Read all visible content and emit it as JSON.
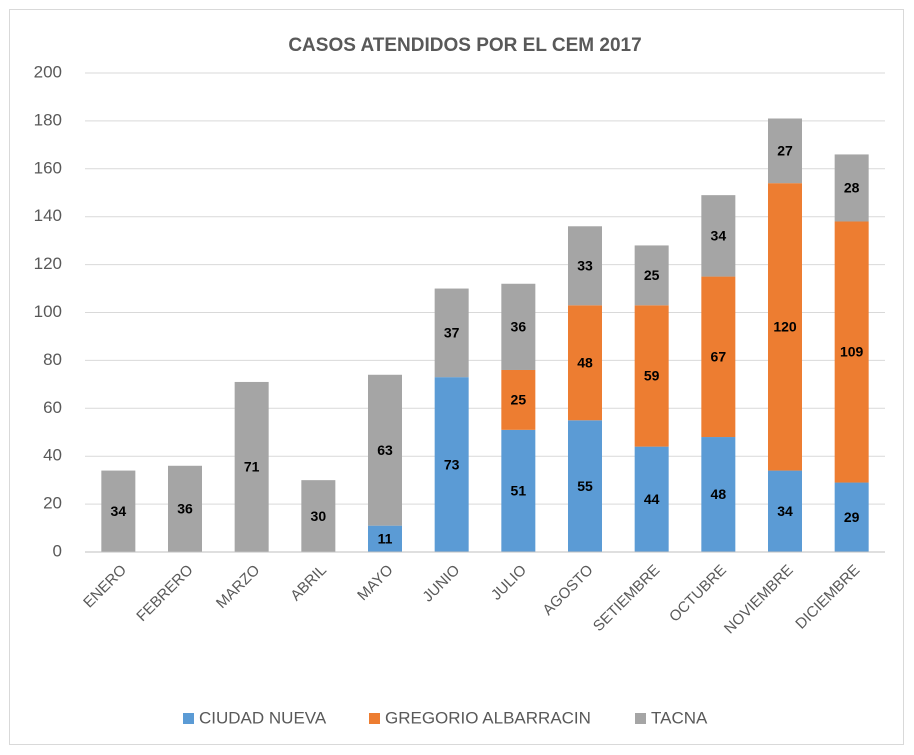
{
  "chart_data": {
    "type": "stacked_bar",
    "title": "CASOS ATENDIDOS POR EL CEM 2017",
    "categories": [
      "ENERO",
      "FEBRERO",
      "MARZO",
      "ABRIL",
      "MAYO",
      "JUNIO",
      "JULIO",
      "AGOSTO",
      "SETIEMBRE",
      "OCTUBRE",
      "NOVIEMBRE",
      "DICIEMBRE"
    ],
    "series": [
      {
        "name": "CIUDAD NUEVA",
        "color": "#5b9bd5",
        "values": [
          null,
          null,
          null,
          null,
          11,
          73,
          51,
          55,
          44,
          48,
          34,
          29
        ]
      },
      {
        "name": "GREGORIO ALBARRACIN",
        "color": "#ed7d31",
        "values": [
          null,
          null,
          null,
          null,
          null,
          null,
          25,
          48,
          59,
          67,
          120,
          109
        ]
      },
      {
        "name": "TACNA",
        "color": "#a5a5a5",
        "values": [
          34,
          36,
          71,
          30,
          63,
          37,
          36,
          33,
          25,
          34,
          27,
          28
        ]
      }
    ],
    "ylim": [
      0,
      200
    ],
    "yticks": [
      0,
      20,
      40,
      60,
      80,
      100,
      120,
      140,
      160,
      180,
      200
    ],
    "grid": true,
    "legend": "bottom"
  }
}
